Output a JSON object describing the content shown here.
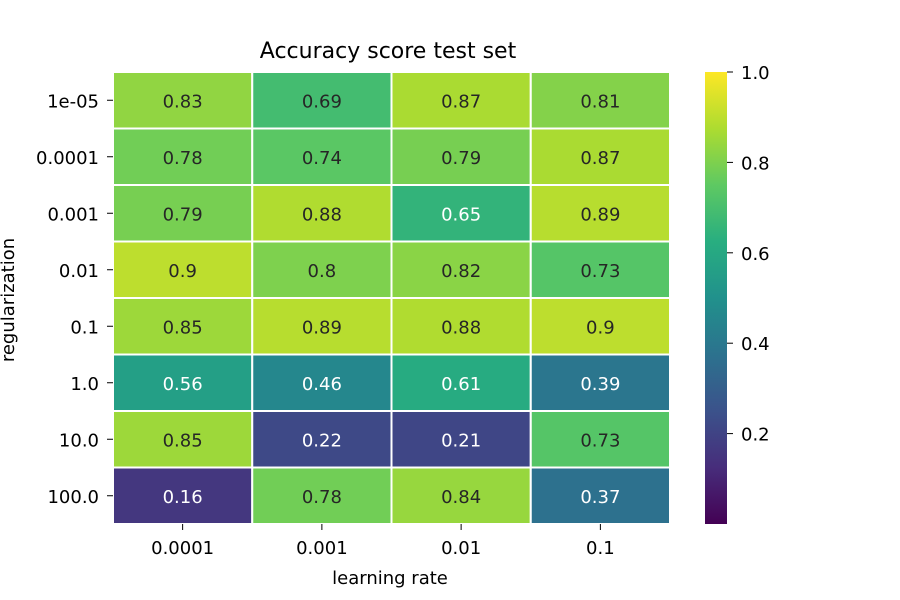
{
  "chart_data": {
    "type": "heatmap",
    "title": "Accuracy score test set",
    "xlabel": "learning rate",
    "ylabel": "regularization",
    "x_categories": [
      "0.0001",
      "0.001",
      "0.01",
      "0.1"
    ],
    "y_categories": [
      "1e-05",
      "0.0001",
      "0.001",
      "0.01",
      "0.1",
      "1.0",
      "10.0",
      "100.0"
    ],
    "values": [
      [
        0.83,
        0.69,
        0.87,
        0.81
      ],
      [
        0.78,
        0.74,
        0.79,
        0.87
      ],
      [
        0.79,
        0.88,
        0.65,
        0.89
      ],
      [
        0.9,
        0.8,
        0.82,
        0.73
      ],
      [
        0.85,
        0.89,
        0.88,
        0.9
      ],
      [
        0.56,
        0.46,
        0.61,
        0.39
      ],
      [
        0.85,
        0.22,
        0.21,
        0.73
      ],
      [
        0.16,
        0.78,
        0.84,
        0.37
      ]
    ],
    "cell_labels": [
      [
        "0.83",
        "0.69",
        "0.87",
        "0.81"
      ],
      [
        "0.78",
        "0.74",
        "0.79",
        "0.87"
      ],
      [
        "0.79",
        "0.88",
        "0.65",
        "0.89"
      ],
      [
        "0.9",
        "0.8",
        "0.82",
        "0.73"
      ],
      [
        "0.85",
        "0.89",
        "0.88",
        "0.9"
      ],
      [
        "0.56",
        "0.46",
        "0.61",
        "0.39"
      ],
      [
        "0.85",
        "0.22",
        "0.21",
        "0.73"
      ],
      [
        "0.16",
        "0.78",
        "0.84",
        "0.37"
      ]
    ],
    "colormap": "viridis",
    "colorbar_range": [
      0.0,
      1.0
    ],
    "colorbar_ticks": [
      "0.2",
      "0.4",
      "0.6",
      "0.8",
      "1.0"
    ],
    "grid": false,
    "legend": "colorbar-right"
  }
}
